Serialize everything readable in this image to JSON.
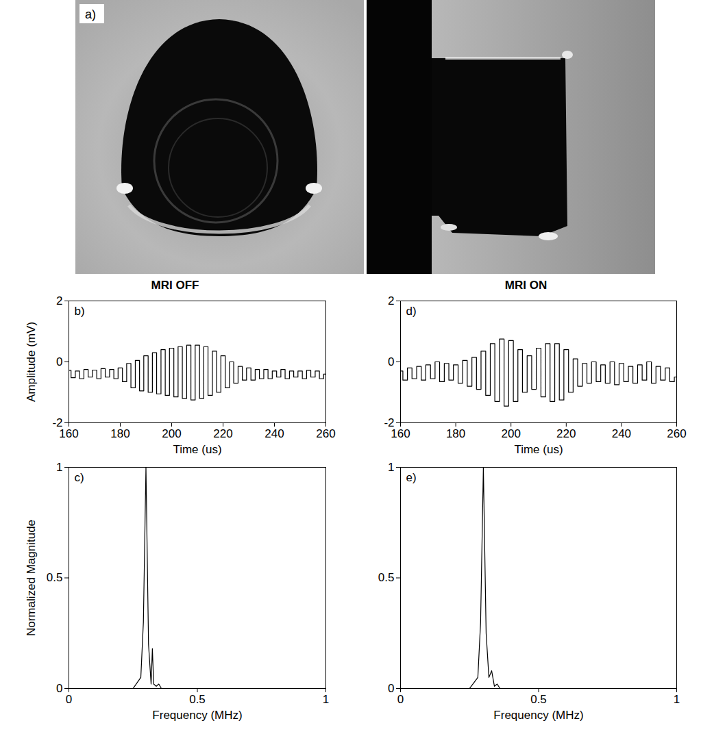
{
  "image": {
    "label": "a)"
  },
  "chart_data": [
    {
      "type": "line",
      "label": "b)",
      "title": "MRI OFF",
      "x_label": "Time (us)",
      "y_label": "Amplitude (mV)",
      "xlim": [
        160,
        260
      ],
      "xticks": [
        160,
        180,
        200,
        220,
        240,
        260
      ],
      "ylim": [
        -2,
        2
      ],
      "yticks": [
        -2,
        0,
        2
      ],
      "grid": false,
      "color": "#000000",
      "line_style": "solid",
      "x": [
        160,
        161.7,
        163.3,
        165,
        166.7,
        168.3,
        170,
        171.7,
        173.3,
        175,
        176.7,
        178.3,
        180,
        181.7,
        183.3,
        185,
        186.7,
        188.3,
        190,
        191.7,
        193.3,
        195,
        196.7,
        198.3,
        200,
        201.7,
        203.3,
        205,
        206.7,
        208.3,
        210,
        211.7,
        213.3,
        215,
        216.7,
        218.3,
        220,
        221.7,
        223.3,
        225,
        226.7,
        228.3,
        230,
        231.7,
        233.3,
        235,
        236.7,
        238.3,
        240,
        241.7,
        243.3,
        245,
        246.7,
        248.3,
        250,
        251.7,
        253.3,
        255,
        256.7,
        258.3,
        260
      ],
      "values": [
        -0.28,
        -0.52,
        -0.3,
        -0.55,
        -0.25,
        -0.5,
        -0.27,
        -0.55,
        -0.22,
        -0.5,
        -0.25,
        -0.55,
        -0.2,
        -0.65,
        -0.05,
        -0.85,
        0.05,
        -0.95,
        0.2,
        -1.0,
        0.3,
        -1.05,
        0.4,
        -1.1,
        0.45,
        -1.15,
        0.5,
        -1.2,
        0.55,
        -1.25,
        0.55,
        -1.2,
        0.5,
        -1.1,
        0.35,
        -1.0,
        0.2,
        -0.85,
        0.0,
        -0.7,
        -0.15,
        -0.6,
        -0.2,
        -0.6,
        -0.25,
        -0.55,
        -0.25,
        -0.55,
        -0.3,
        -0.5,
        -0.25,
        -0.55,
        -0.3,
        -0.5,
        -0.3,
        -0.55,
        -0.28,
        -0.5,
        -0.3,
        -0.55,
        -0.4
      ]
    },
    {
      "type": "line",
      "label": "d)",
      "title": "MRI ON",
      "x_label": "Time (us)",
      "xlim": [
        160,
        260
      ],
      "xticks": [
        160,
        180,
        200,
        220,
        240,
        260
      ],
      "ylim": [
        -2,
        2
      ],
      "yticks": [
        -2,
        0,
        2
      ],
      "grid": false,
      "color": "#000000",
      "line_style": "solid",
      "x": [
        160,
        161.7,
        163.3,
        165,
        166.7,
        168.3,
        170,
        171.7,
        173.3,
        175,
        176.7,
        178.3,
        180,
        181.7,
        183.3,
        185,
        186.7,
        188.3,
        190,
        191.7,
        193.3,
        195,
        196.7,
        198.3,
        200,
        201.7,
        203.3,
        205,
        206.7,
        208.3,
        210,
        211.7,
        213.3,
        215,
        216.7,
        218.3,
        220,
        221.7,
        223.3,
        225,
        226.7,
        228.3,
        230,
        231.7,
        233.3,
        235,
        236.7,
        238.3,
        240,
        241.7,
        243.3,
        245,
        246.7,
        248.3,
        250,
        251.7,
        253.3,
        255,
        256.7,
        258.3,
        260
      ],
      "values": [
        -0.3,
        -0.6,
        -0.2,
        -0.55,
        -0.15,
        -0.6,
        -0.1,
        -0.55,
        0.0,
        -0.65,
        -0.05,
        -0.6,
        -0.1,
        -0.7,
        0.05,
        -0.8,
        0.15,
        -0.9,
        0.35,
        -1.1,
        0.6,
        -1.3,
        0.75,
        -1.45,
        0.7,
        -1.3,
        0.4,
        -1.0,
        0.2,
        -0.9,
        0.45,
        -1.15,
        0.6,
        -1.3,
        0.6,
        -1.25,
        0.4,
        -1.0,
        0.1,
        -0.8,
        -0.05,
        -0.7,
        0.0,
        -0.65,
        -0.1,
        -0.7,
        0.0,
        -0.75,
        -0.05,
        -0.65,
        -0.15,
        -0.7,
        -0.1,
        -0.6,
        0.0,
        -0.7,
        -0.15,
        -0.6,
        -0.2,
        -0.65,
        -0.5
      ]
    },
    {
      "type": "line",
      "label": "c)",
      "x_label": "Frequency (MHz)",
      "y_label": "Normalized Magnitude",
      "xlim": [
        0,
        1
      ],
      "xticks": [
        0,
        0.5,
        1
      ],
      "ylim": [
        0,
        1
      ],
      "yticks": [
        0,
        0.5,
        1
      ],
      "grid": false,
      "color": "#000000",
      "line_style": "solid",
      "x": [
        0,
        0.25,
        0.28,
        0.29,
        0.3,
        0.31,
        0.32,
        0.325,
        0.33,
        0.34,
        0.35,
        0.36,
        0.4,
        1
      ],
      "values": [
        0,
        0,
        0.05,
        0.3,
        1,
        0.2,
        0.02,
        0.18,
        0.02,
        0.01,
        0.02,
        0,
        0,
        0
      ]
    },
    {
      "type": "line",
      "label": "e)",
      "x_label": "Frequency (MHz)",
      "xlim": [
        0,
        1
      ],
      "xticks": [
        0,
        0.5,
        1
      ],
      "ylim": [
        0,
        1
      ],
      "yticks": [
        0,
        0.5,
        1
      ],
      "grid": false,
      "color": "#000000",
      "line_style": "solid",
      "x": [
        0,
        0.25,
        0.28,
        0.29,
        0.3,
        0.31,
        0.32,
        0.33,
        0.34,
        0.35,
        0.36,
        0.4,
        1
      ],
      "values": [
        0,
        0,
        0.05,
        0.3,
        1,
        0.25,
        0.05,
        0.08,
        0.01,
        0.02,
        0,
        0,
        0
      ]
    }
  ]
}
